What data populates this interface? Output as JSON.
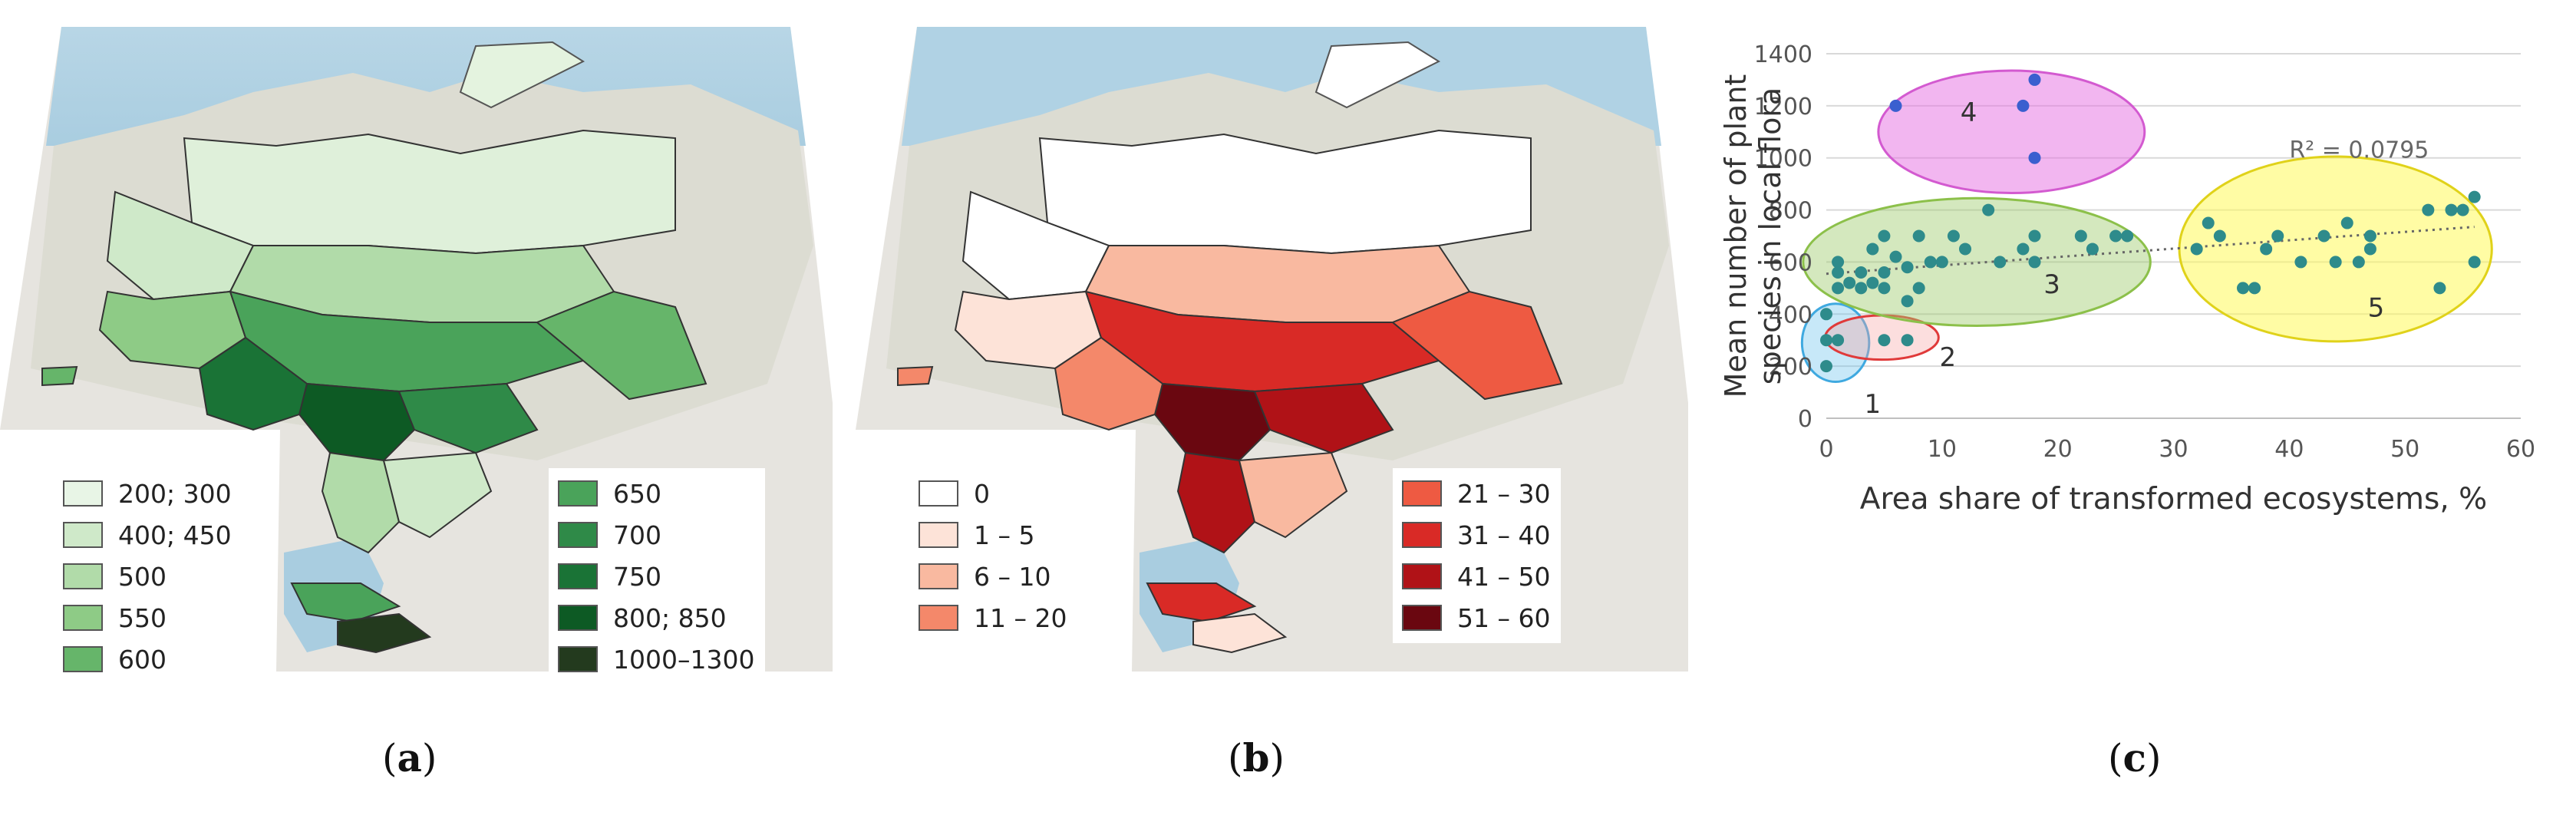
{
  "panels": [
    {
      "id": "a",
      "label_open": "(",
      "label_letter": "a",
      "label_close": ")"
    },
    {
      "id": "b",
      "label_open": "(",
      "label_letter": "b",
      "label_close": ")"
    },
    {
      "id": "c",
      "label_open": "(",
      "label_letter": "c",
      "label_close": ")"
    }
  ],
  "map_a": {
    "legend_left": [
      {
        "label": "200; 300",
        "color": "#e8f5e6"
      },
      {
        "label": "400; 450",
        "color": "#cfe9c9"
      },
      {
        "label": "500",
        "color": "#b1dba9"
      },
      {
        "label": "550",
        "color": "#8ecb86"
      },
      {
        "label": "600",
        "color": "#66b56a"
      }
    ],
    "legend_right": [
      {
        "label": "650",
        "color": "#4aa35a"
      },
      {
        "label": "700",
        "color": "#2f8a48"
      },
      {
        "label": "750",
        "color": "#1a7336"
      },
      {
        "label": "800; 850",
        "color": "#0d5a24"
      },
      {
        "label": "1000–1300",
        "color": "#233a1e"
      }
    ]
  },
  "map_b": {
    "legend_left": [
      {
        "label": "0",
        "color": "#ffffff"
      },
      {
        "label": "1 – 5",
        "color": "#fde3d8"
      },
      {
        "label": "6 – 10",
        "color": "#f9b9a0"
      },
      {
        "label": "11 – 20",
        "color": "#f4886a"
      }
    ],
    "legend_right": [
      {
        "label": "21 – 30",
        "color": "#ee5a42"
      },
      {
        "label": "31 – 40",
        "color": "#d92a26"
      },
      {
        "label": "41 – 50",
        "color": "#b01217"
      },
      {
        "label": "51 – 60",
        "color": "#6a0710"
      }
    ]
  },
  "chart_data": {
    "type": "scatter",
    "xlabel": "Area share of transformed ecosystems, %",
    "ylabel_line1": "Mean number of plant",
    "ylabel_line2": "species in local flora",
    "xlim": [
      0,
      60
    ],
    "ylim": [
      0,
      1400
    ],
    "xticks": [
      0,
      10,
      20,
      30,
      40,
      50,
      60
    ],
    "yticks": [
      0,
      200,
      400,
      600,
      800,
      1000,
      1200,
      1400
    ],
    "grid": "horizontal",
    "point_color": "#2e8b8b",
    "trend": {
      "x": [
        0,
        56
      ],
      "y": [
        555,
        735
      ],
      "r2_label": "R² = 0.0795"
    },
    "points": [
      {
        "x": 0,
        "y": 400
      },
      {
        "x": 0,
        "y": 300
      },
      {
        "x": 0,
        "y": 200
      },
      {
        "x": 1,
        "y": 300
      },
      {
        "x": 7,
        "y": 300
      },
      {
        "x": 5,
        "y": 300
      },
      {
        "x": 1,
        "y": 500
      },
      {
        "x": 1,
        "y": 560
      },
      {
        "x": 1,
        "y": 600
      },
      {
        "x": 2,
        "y": 520
      },
      {
        "x": 3,
        "y": 500
      },
      {
        "x": 3,
        "y": 560
      },
      {
        "x": 4,
        "y": 520
      },
      {
        "x": 4,
        "y": 650
      },
      {
        "x": 5,
        "y": 500
      },
      {
        "x": 5,
        "y": 560
      },
      {
        "x": 5,
        "y": 700
      },
      {
        "x": 6,
        "y": 620
      },
      {
        "x": 7,
        "y": 450
      },
      {
        "x": 7,
        "y": 580
      },
      {
        "x": 8,
        "y": 500
      },
      {
        "x": 8,
        "y": 700
      },
      {
        "x": 9,
        "y": 600
      },
      {
        "x": 10,
        "y": 600
      },
      {
        "x": 11,
        "y": 700
      },
      {
        "x": 12,
        "y": 650
      },
      {
        "x": 14,
        "y": 800
      },
      {
        "x": 15,
        "y": 600
      },
      {
        "x": 17,
        "y": 650
      },
      {
        "x": 18,
        "y": 600
      },
      {
        "x": 18,
        "y": 700
      },
      {
        "x": 22,
        "y": 700
      },
      {
        "x": 23,
        "y": 650
      },
      {
        "x": 25,
        "y": 700
      },
      {
        "x": 26,
        "y": 700
      },
      {
        "x": 6,
        "y": 1200
      },
      {
        "x": 17,
        "y": 1200
      },
      {
        "x": 18,
        "y": 1300
      },
      {
        "x": 18,
        "y": 1000
      },
      {
        "x": 32,
        "y": 650
      },
      {
        "x": 33,
        "y": 750
      },
      {
        "x": 34,
        "y": 700
      },
      {
        "x": 36,
        "y": 500
      },
      {
        "x": 37,
        "y": 500
      },
      {
        "x": 38,
        "y": 650
      },
      {
        "x": 39,
        "y": 700
      },
      {
        "x": 41,
        "y": 600
      },
      {
        "x": 43,
        "y": 700
      },
      {
        "x": 44,
        "y": 600
      },
      {
        "x": 45,
        "y": 750
      },
      {
        "x": 46,
        "y": 600
      },
      {
        "x": 47,
        "y": 700
      },
      {
        "x": 47,
        "y": 650
      },
      {
        "x": 52,
        "y": 800
      },
      {
        "x": 53,
        "y": 500
      },
      {
        "x": 54,
        "y": 800
      },
      {
        "x": 55,
        "y": 800
      },
      {
        "x": 56,
        "y": 850
      },
      {
        "x": 56,
        "y": 600
      }
    ],
    "clusters": [
      {
        "label": "1",
        "cx": 0.8,
        "cy": 290,
        "rx": 2.9,
        "ry": 150,
        "fill": "rgba(95,190,235,0.35)",
        "stroke": "#3fa9e0",
        "lx": 4,
        "ly": 20
      },
      {
        "label": "2",
        "cx": 4.8,
        "cy": 310,
        "rx": 4.9,
        "ry": 85,
        "fill": "rgba(245,160,160,0.35)",
        "stroke": "#e03a3a",
        "lx": 10.5,
        "ly": 200
      },
      {
        "label": "3",
        "cx": 13,
        "cy": 600,
        "rx": 15,
        "ry": 245,
        "fill": "rgba(160,205,110,0.45)",
        "stroke": "#8cc04a",
        "lx": 19.5,
        "ly": 480
      },
      {
        "label": "4",
        "cx": 16,
        "cy": 1100,
        "rx": 11.5,
        "ry": 235,
        "fill": "rgba(230,110,225,0.5)",
        "stroke": "#d35ad0",
        "lx": 12.3,
        "ly": 1140
      },
      {
        "label": "5",
        "cx": 44,
        "cy": 650,
        "rx": 13.5,
        "ry": 355,
        "fill": "rgba(255,250,90,0.55)",
        "stroke": "#e0d21a",
        "lx": 47.5,
        "ly": 390
      }
    ]
  }
}
